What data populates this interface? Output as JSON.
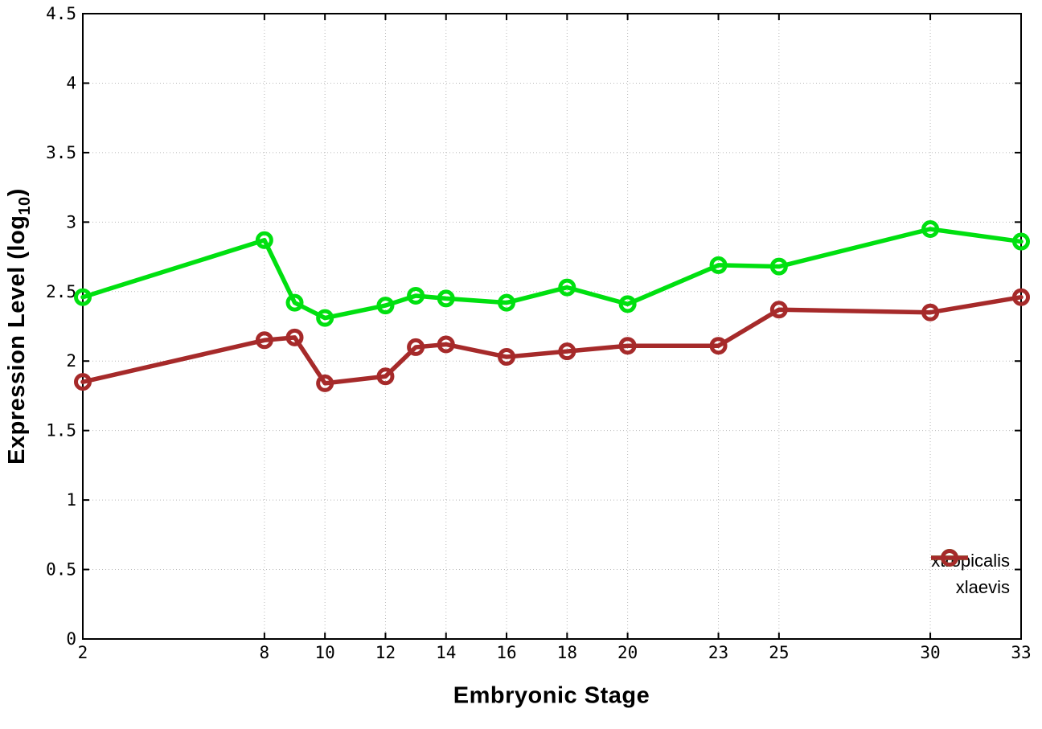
{
  "chart_data": {
    "type": "line",
    "title": "",
    "xlabel": "Embryonic Stage",
    "ylabel": "Expression Level (log10)",
    "ylabel_parts": {
      "pre": "Expression Level (log",
      "sub": "10",
      "post": ")"
    },
    "xlim": [
      2,
      33
    ],
    "ylim": [
      0,
      4.5
    ],
    "xtick_values": [
      2,
      8,
      10,
      12,
      14,
      16,
      18,
      20,
      23,
      25,
      30,
      33
    ],
    "xtick_labels": [
      "2",
      "8",
      "10",
      "12",
      "14",
      "16",
      "18",
      "20",
      "23",
      "25",
      "30",
      "33"
    ],
    "ytick_values": [
      0,
      0.5,
      1,
      1.5,
      2,
      2.5,
      3,
      3.5,
      4,
      4.5
    ],
    "ytick_labels": [
      "0",
      "0.5",
      "1",
      "1.5",
      "2",
      "2.5",
      "3",
      "3.5",
      "4",
      "4.5"
    ],
    "grid": true,
    "legend_position": "inside-bottom-right",
    "x": [
      2,
      8,
      9,
      10,
      12,
      13,
      14,
      16,
      18,
      20,
      23,
      25,
      30,
      33
    ],
    "series": [
      {
        "name": "xtropicalis",
        "color": "#00e010",
        "values": [
          2.46,
          2.87,
          2.42,
          2.31,
          2.4,
          2.47,
          2.45,
          2.42,
          2.53,
          2.41,
          2.69,
          2.68,
          2.95,
          2.86
        ]
      },
      {
        "name": "xlaevis",
        "color": "#a62a2a",
        "values": [
          1.85,
          2.15,
          2.17,
          1.84,
          1.89,
          2.1,
          2.12,
          2.03,
          2.07,
          2.11,
          2.11,
          2.37,
          2.35,
          2.46
        ]
      }
    ],
    "style": {
      "grid_color": "#b8b8b8",
      "border_color": "#000000",
      "background": "#ffffff",
      "line_width": 5.5,
      "marker_radius": 8.5,
      "marker_stroke": 5
    }
  }
}
